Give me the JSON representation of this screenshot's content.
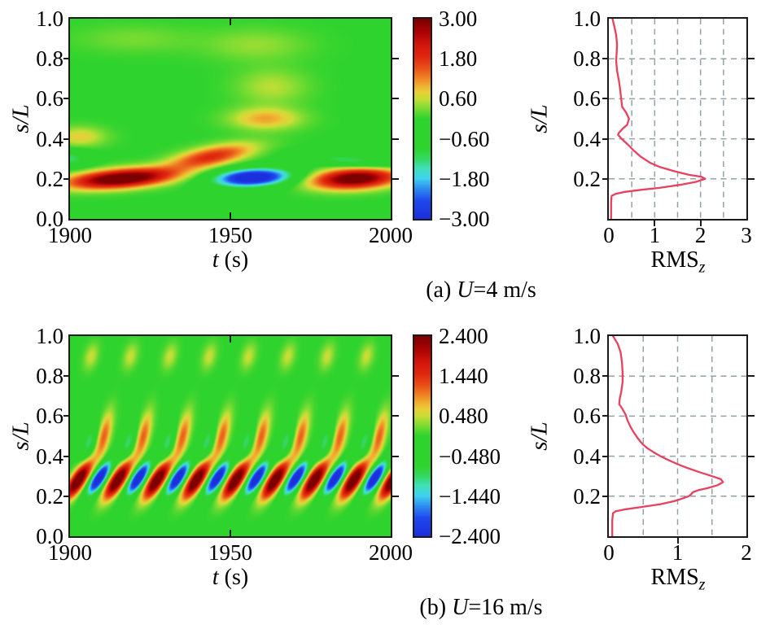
{
  "chart_data": {
    "type": "heatmap",
    "panels": [
      {
        "id": "a",
        "caption_prefix": "(a) ",
        "caption_var": "U",
        "caption_suffix": "=4 m/s",
        "contour": {
          "type": "heatmap",
          "xlabel_var": "t",
          "xlabel_rest": " (s)",
          "ylabel": "s/L",
          "x_ticks": [
            "1900",
            "1950",
            "2000"
          ],
          "x_tick_values": [
            1900,
            1950,
            2000
          ],
          "y_ticks": [
            "1.0",
            "0.8",
            "0.6",
            "0.4",
            "0.2",
            "0.0"
          ],
          "t_range": [
            1900,
            2000
          ],
          "s_range": [
            0,
            1
          ],
          "v_range": [
            -3,
            3
          ],
          "features": [
            [
              1916,
              0.2,
              16,
              0.045,
              3.6,
              0.0012
            ],
            [
              1944,
              0.31,
              13,
              0.05,
              1.9,
              0.003
            ],
            [
              1957,
              0.205,
              12,
              0.045,
              -3.6,
              0.0008
            ],
            [
              1989,
              0.2,
              13,
              0.05,
              3.4,
              0.0008
            ],
            [
              1961,
              0.5,
              11,
              0.055,
              1.05,
              0
            ],
            [
              1963,
              0.66,
              11,
              0.09,
              0.55,
              0
            ],
            [
              1958,
              0.87,
              16,
              0.08,
              0.42,
              0
            ],
            [
              1899,
              0.3,
              7,
              0.04,
              -1.3,
              0
            ],
            [
              1988,
              0.29,
              14,
              0.032,
              -1.25,
              -0.0012
            ],
            [
              1903,
              0.41,
              8,
              0.05,
              0.8,
              0
            ],
            [
              1920,
              0.9,
              18,
              0.07,
              0.3,
              0
            ]
          ],
          "periodic_features": []
        },
        "colorbar": {
          "labels": [
            "3.00",
            "1.80",
            "0.60",
            "−0.60",
            "−1.80",
            "−3.00"
          ]
        },
        "rms": {
          "type": "line",
          "xlabel": "RMS",
          "xlabel_sub": "z",
          "ylabel": "s/L",
          "x_ticks": [
            "0",
            "1",
            "2",
            "3"
          ],
          "x_tick_values": [
            0,
            1,
            2,
            3
          ],
          "y_ticks": [
            "1.0",
            "0.8",
            "0.6",
            "0.4",
            "0.2"
          ],
          "x_range": [
            0,
            3
          ],
          "grid_x": [
            0.5,
            1,
            1.5,
            2,
            2.5
          ],
          "grid_y": [
            0.2,
            0.4,
            0.6,
            0.8
          ],
          "points": [
            [
              0.08,
              1.0
            ],
            [
              0.12,
              0.96
            ],
            [
              0.16,
              0.92
            ],
            [
              0.18,
              0.87
            ],
            [
              0.17,
              0.83
            ],
            [
              0.16,
              0.79
            ],
            [
              0.18,
              0.74
            ],
            [
              0.22,
              0.69
            ],
            [
              0.25,
              0.64
            ],
            [
              0.27,
              0.6
            ],
            [
              0.29,
              0.56
            ],
            [
              0.38,
              0.53
            ],
            [
              0.44,
              0.5
            ],
            [
              0.4,
              0.47
            ],
            [
              0.3,
              0.45
            ],
            [
              0.22,
              0.43
            ],
            [
              0.2,
              0.42
            ],
            [
              0.28,
              0.4
            ],
            [
              0.42,
              0.37
            ],
            [
              0.55,
              0.34
            ],
            [
              0.7,
              0.31
            ],
            [
              0.9,
              0.28
            ],
            [
              1.1,
              0.26
            ],
            [
              1.4,
              0.24
            ],
            [
              1.75,
              0.22
            ],
            [
              2.02,
              0.21
            ],
            [
              2.1,
              0.2
            ],
            [
              1.9,
              0.185
            ],
            [
              1.55,
              0.17
            ],
            [
              1.1,
              0.155
            ],
            [
              0.7,
              0.145
            ],
            [
              0.35,
              0.135
            ],
            [
              0.15,
              0.125
            ],
            [
              0.06,
              0.115
            ],
            [
              0.05,
              0.08
            ],
            [
              0.05,
              0.0
            ]
          ]
        }
      },
      {
        "id": "b",
        "caption_prefix": "(b) ",
        "caption_var": "U",
        "caption_suffix": "=16 m/s",
        "contour": {
          "type": "heatmap",
          "xlabel_var": "t",
          "xlabel_rest": " (s)",
          "ylabel": "s/L",
          "x_ticks": [
            "1900",
            "1950",
            "2000"
          ],
          "x_tick_values": [
            1900,
            1950,
            2000
          ],
          "y_ticks": [
            "1.0",
            "0.8",
            "0.6",
            "0.4",
            "0.2",
            "0.0"
          ],
          "t_range": [
            1900,
            2000
          ],
          "s_range": [
            0,
            1
          ],
          "v_range": [
            -2.4,
            2.4
          ],
          "features": [],
          "periodic_features": [
            {
              "t0": 1902.5,
              "period": 12.3,
              "n": 9,
              "s": 0.28,
              "st": 4.0,
              "ss": 0.055,
              "amp": 3.0,
              "slope": 0.018
            },
            {
              "t0": 1909.0,
              "period": 12.3,
              "n": 9,
              "s": 0.29,
              "st": 3.6,
              "ss": 0.05,
              "amp": -2.9,
              "slope": 0.018
            },
            {
              "t0": 1910.5,
              "period": 12.3,
              "n": 9,
              "s": 0.5,
              "st": 2.6,
              "ss": 0.09,
              "amp": 1.15,
              "slope": 0.03
            },
            {
              "t0": 1906.5,
              "period": 12.3,
              "n": 9,
              "s": 0.9,
              "st": 2.3,
              "ss": 0.06,
              "amp": 0.5,
              "slope": 0.01
            },
            {
              "t0": 1905.8,
              "period": 12.3,
              "n": 9,
              "s": 0.47,
              "st": 2.4,
              "ss": 0.07,
              "amp": -1.0,
              "slope": 0.02
            }
          ]
        },
        "colorbar": {
          "labels": [
            "2.400",
            "1.440",
            "0.480",
            "−0.480",
            "−1.440",
            "−2.400"
          ]
        },
        "rms": {
          "type": "line",
          "xlabel": "RMS",
          "xlabel_sub": "z",
          "ylabel": "s/L",
          "x_ticks": [
            "0",
            "1",
            "2"
          ],
          "x_tick_values": [
            0,
            1,
            2
          ],
          "y_ticks": [
            "1.0",
            "0.8",
            "0.6",
            "0.4",
            "0.2"
          ],
          "x_range": [
            0,
            2
          ],
          "grid_x": [
            0.5,
            1,
            1.5
          ],
          "grid_y": [
            0.2,
            0.4,
            0.6,
            0.8
          ],
          "points": [
            [
              0.06,
              1.0
            ],
            [
              0.13,
              0.96
            ],
            [
              0.17,
              0.92
            ],
            [
              0.19,
              0.87
            ],
            [
              0.2,
              0.82
            ],
            [
              0.2,
              0.77
            ],
            [
              0.18,
              0.72
            ],
            [
              0.16,
              0.69
            ],
            [
              0.15,
              0.66
            ],
            [
              0.19,
              0.64
            ],
            [
              0.24,
              0.61
            ],
            [
              0.27,
              0.58
            ],
            [
              0.31,
              0.55
            ],
            [
              0.36,
              0.52
            ],
            [
              0.42,
              0.49
            ],
            [
              0.49,
              0.46
            ],
            [
              0.56,
              0.44
            ],
            [
              0.65,
              0.42
            ],
            [
              0.75,
              0.4
            ],
            [
              0.87,
              0.38
            ],
            [
              1.0,
              0.36
            ],
            [
              1.15,
              0.34
            ],
            [
              1.32,
              0.32
            ],
            [
              1.5,
              0.3
            ],
            [
              1.63,
              0.285
            ],
            [
              1.66,
              0.27
            ],
            [
              1.58,
              0.255
            ],
            [
              1.43,
              0.24
            ],
            [
              1.3,
              0.23
            ],
            [
              1.22,
              0.22
            ],
            [
              1.2,
              0.21
            ],
            [
              1.16,
              0.2
            ],
            [
              1.08,
              0.19
            ],
            [
              0.95,
              0.175
            ],
            [
              0.75,
              0.16
            ],
            [
              0.5,
              0.147
            ],
            [
              0.25,
              0.135
            ],
            [
              0.1,
              0.125
            ],
            [
              0.06,
              0.115
            ],
            [
              0.05,
              0.08
            ],
            [
              0.05,
              0.0
            ]
          ]
        }
      }
    ],
    "style": {
      "colormap": [
        [
          0.0,
          "#1c2fdd"
        ],
        [
          0.09,
          "#1f49ec"
        ],
        [
          0.15,
          "#2f8df0"
        ],
        [
          0.2,
          "#3fd2f0"
        ],
        [
          0.25,
          "#3fe0bb"
        ],
        [
          0.3,
          "#35d860"
        ],
        [
          0.35,
          "#2ed32e"
        ],
        [
          0.5,
          "#2ed32e"
        ],
        [
          0.555,
          "#7edc32"
        ],
        [
          0.6,
          "#c8de36"
        ],
        [
          0.635,
          "#e8cf38"
        ],
        [
          0.67,
          "#f0ab30"
        ],
        [
          0.71,
          "#ee7d24"
        ],
        [
          0.755,
          "#e85018"
        ],
        [
          0.81,
          "#e0290f"
        ],
        [
          0.875,
          "#d1150b"
        ],
        [
          0.93,
          "#ad0404"
        ],
        [
          1.0,
          "#7d0000"
        ]
      ],
      "line_color": "#e8415f",
      "grid_color": "#93a2a8",
      "axis_color": "#1a1a1a",
      "text_color": "#000000",
      "background": "#ffffff"
    }
  }
}
